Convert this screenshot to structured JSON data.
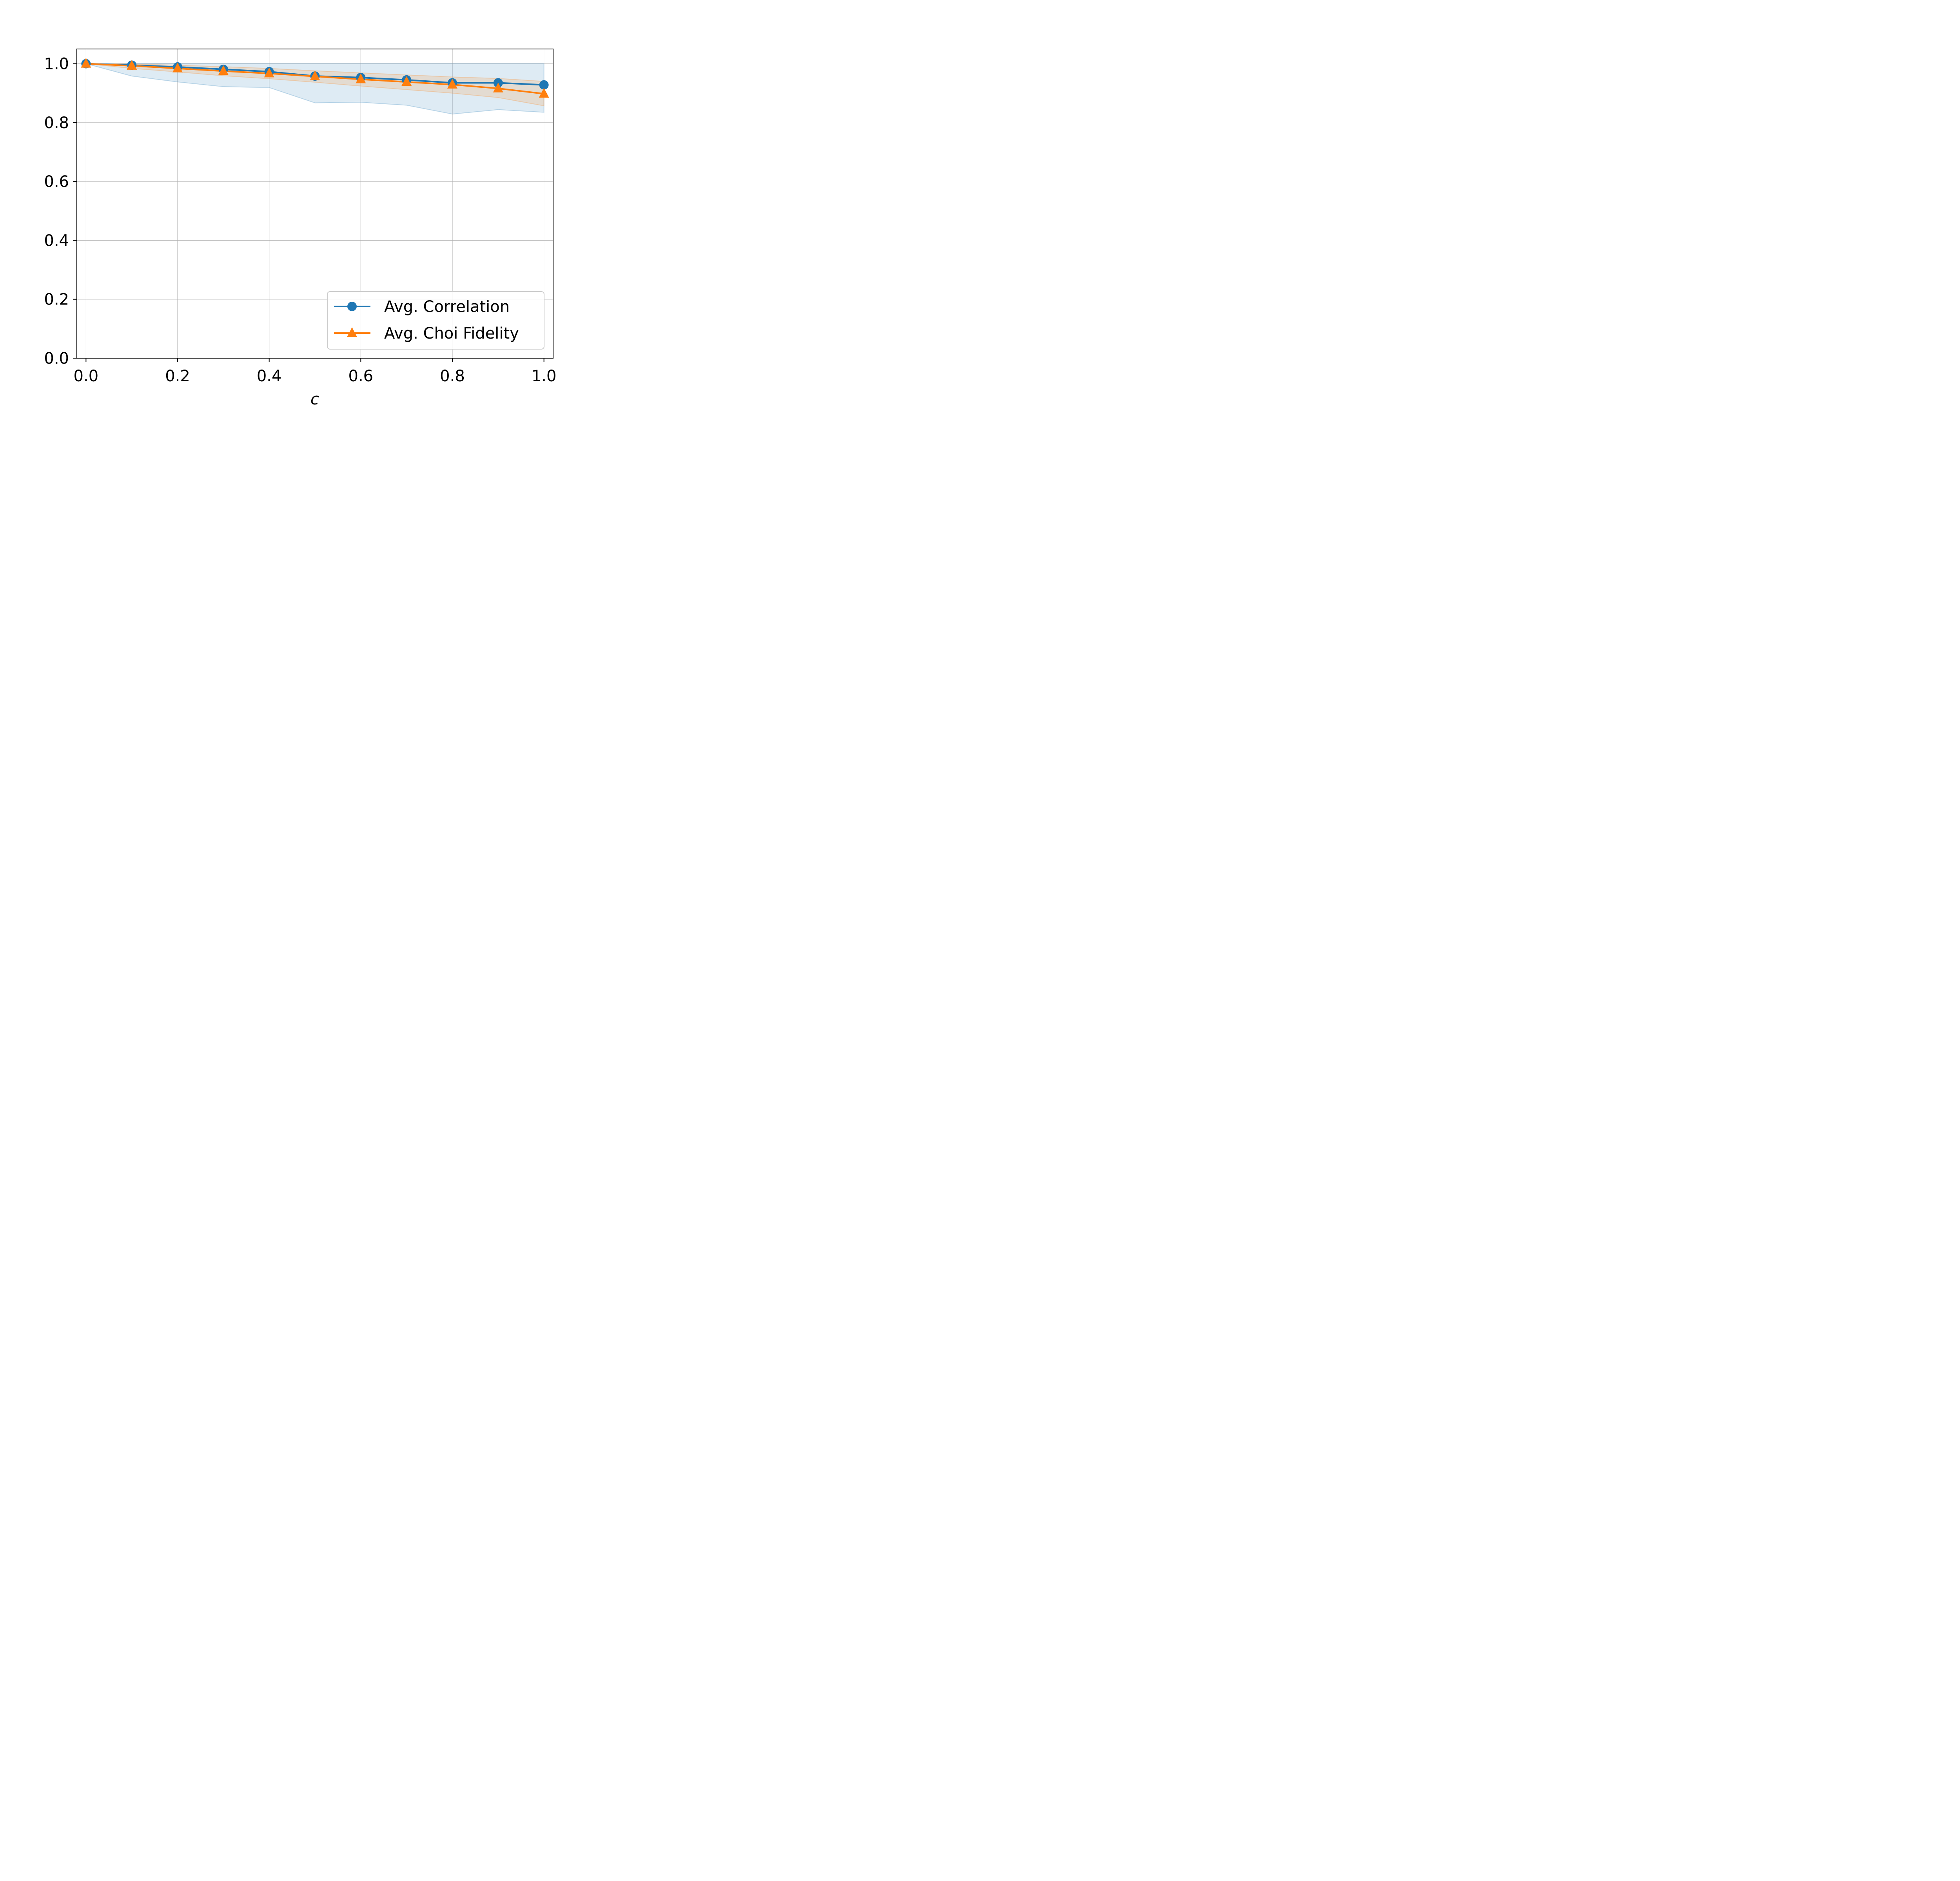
{
  "chart_data": {
    "type": "line",
    "xlabel": "c",
    "ylabel": "",
    "xlim": [
      -0.02,
      1.02
    ],
    "ylim": [
      0.0,
      1.05
    ],
    "xticks": [
      "0.0",
      "0.2",
      "0.4",
      "0.6",
      "0.8",
      "1.0"
    ],
    "yticks": [
      "0.0",
      "0.2",
      "0.4",
      "0.6",
      "0.8",
      "1.0"
    ],
    "grid": true,
    "legend_position": "lower-right",
    "x": [
      0.0,
      0.1,
      0.2,
      0.3,
      0.4,
      0.5,
      0.6,
      0.7,
      0.8,
      0.9,
      1.0
    ],
    "series": [
      {
        "name": "Avg. Correlation",
        "color": "#1f77b4",
        "marker": "circle",
        "values": [
          1.0,
          0.995,
          0.989,
          0.981,
          0.973,
          0.958,
          0.953,
          0.945,
          0.935,
          0.935,
          0.928
        ],
        "band_upper": [
          1.0,
          1.0,
          1.0,
          1.0,
          1.0,
          1.0,
          1.0,
          1.0,
          1.0,
          1.0,
          1.0
        ],
        "band_lower": [
          1.0,
          0.958,
          0.938,
          0.922,
          0.919,
          0.867,
          0.869,
          0.859,
          0.829,
          0.844,
          0.835
        ]
      },
      {
        "name": "Avg. Choi Fidelity",
        "color": "#ff7f0e",
        "marker": "triangle",
        "values": [
          1.0,
          0.993,
          0.984,
          0.975,
          0.967,
          0.957,
          0.947,
          0.938,
          0.929,
          0.916,
          0.898
        ],
        "band_upper": [
          1.0,
          0.999,
          0.995,
          0.99,
          0.984,
          0.976,
          0.969,
          0.962,
          0.955,
          0.95,
          0.94
        ],
        "band_lower": [
          1.0,
          0.984,
          0.972,
          0.959,
          0.949,
          0.937,
          0.924,
          0.912,
          0.9,
          0.885,
          0.857
        ]
      }
    ]
  }
}
